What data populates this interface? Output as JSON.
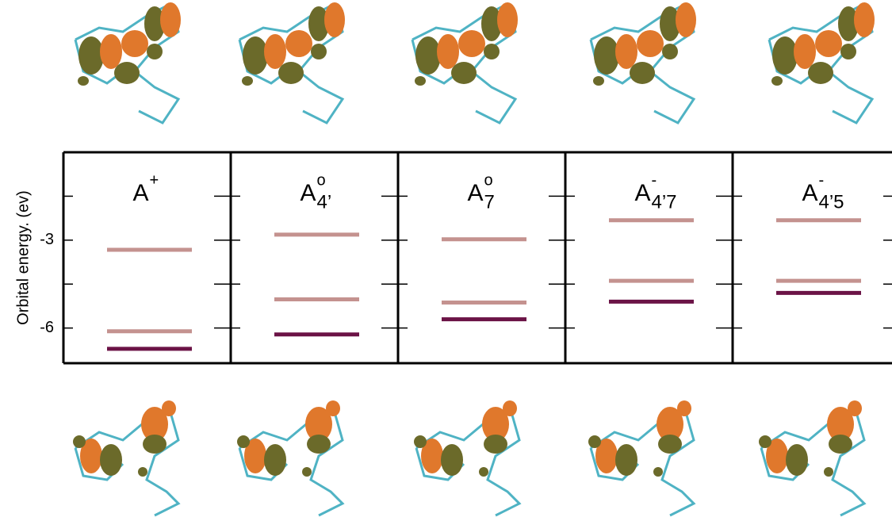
{
  "chart_data": {
    "type": "levels",
    "ylabel": "Orbital energy. (ev)",
    "categories": [
      {
        "text": "A",
        "sup": "+"
      },
      {
        "text": "A",
        "sup": "o",
        "sub": "4’"
      },
      {
        "text": "A",
        "sup": "o",
        "sub": "7"
      },
      {
        "text": "A",
        "sup": "-",
        "sub": "4’7"
      },
      {
        "text": "A",
        "sup": "-",
        "sub": "4’5"
      }
    ],
    "series": [
      {
        "color": "#c4928f",
        "values": [
          -3.33,
          -2.81,
          -2.97,
          -2.32,
          -2.32
        ]
      },
      {
        "color": "#c4928f",
        "values": [
          -6.11,
          -5.02,
          -5.13,
          -4.39,
          -4.39
        ]
      },
      {
        "color": "#6b1346",
        "values": [
          -6.71,
          -6.22,
          -5.7,
          -5.1,
          -4.8
        ]
      }
    ],
    "ylim": [
      -7.2,
      0
    ],
    "yticks": [
      -3,
      -6
    ],
    "minor_yticks": [
      -1.5,
      -4.5
    ]
  }
}
